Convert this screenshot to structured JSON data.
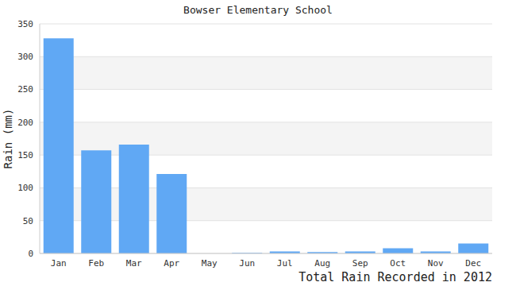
{
  "chart_data": {
    "type": "bar",
    "title": "Bowser Elementary School",
    "x_label": "Total Rain Recorded in 2012",
    "y_label": "Rain (mm)",
    "categories": [
      "Jan",
      "Feb",
      "Mar",
      "Apr",
      "May",
      "Jun",
      "Jul",
      "Aug",
      "Sep",
      "Oct",
      "Nov",
      "Dec"
    ],
    "values": [
      328,
      157,
      166,
      121,
      0,
      1,
      3,
      2,
      3,
      8,
      3,
      15
    ],
    "color": "#60a8f4",
    "ylim": [
      0,
      350
    ],
    "yticks": [
      0,
      50,
      100,
      150,
      200,
      250,
      300,
      350
    ],
    "grid": true
  }
}
